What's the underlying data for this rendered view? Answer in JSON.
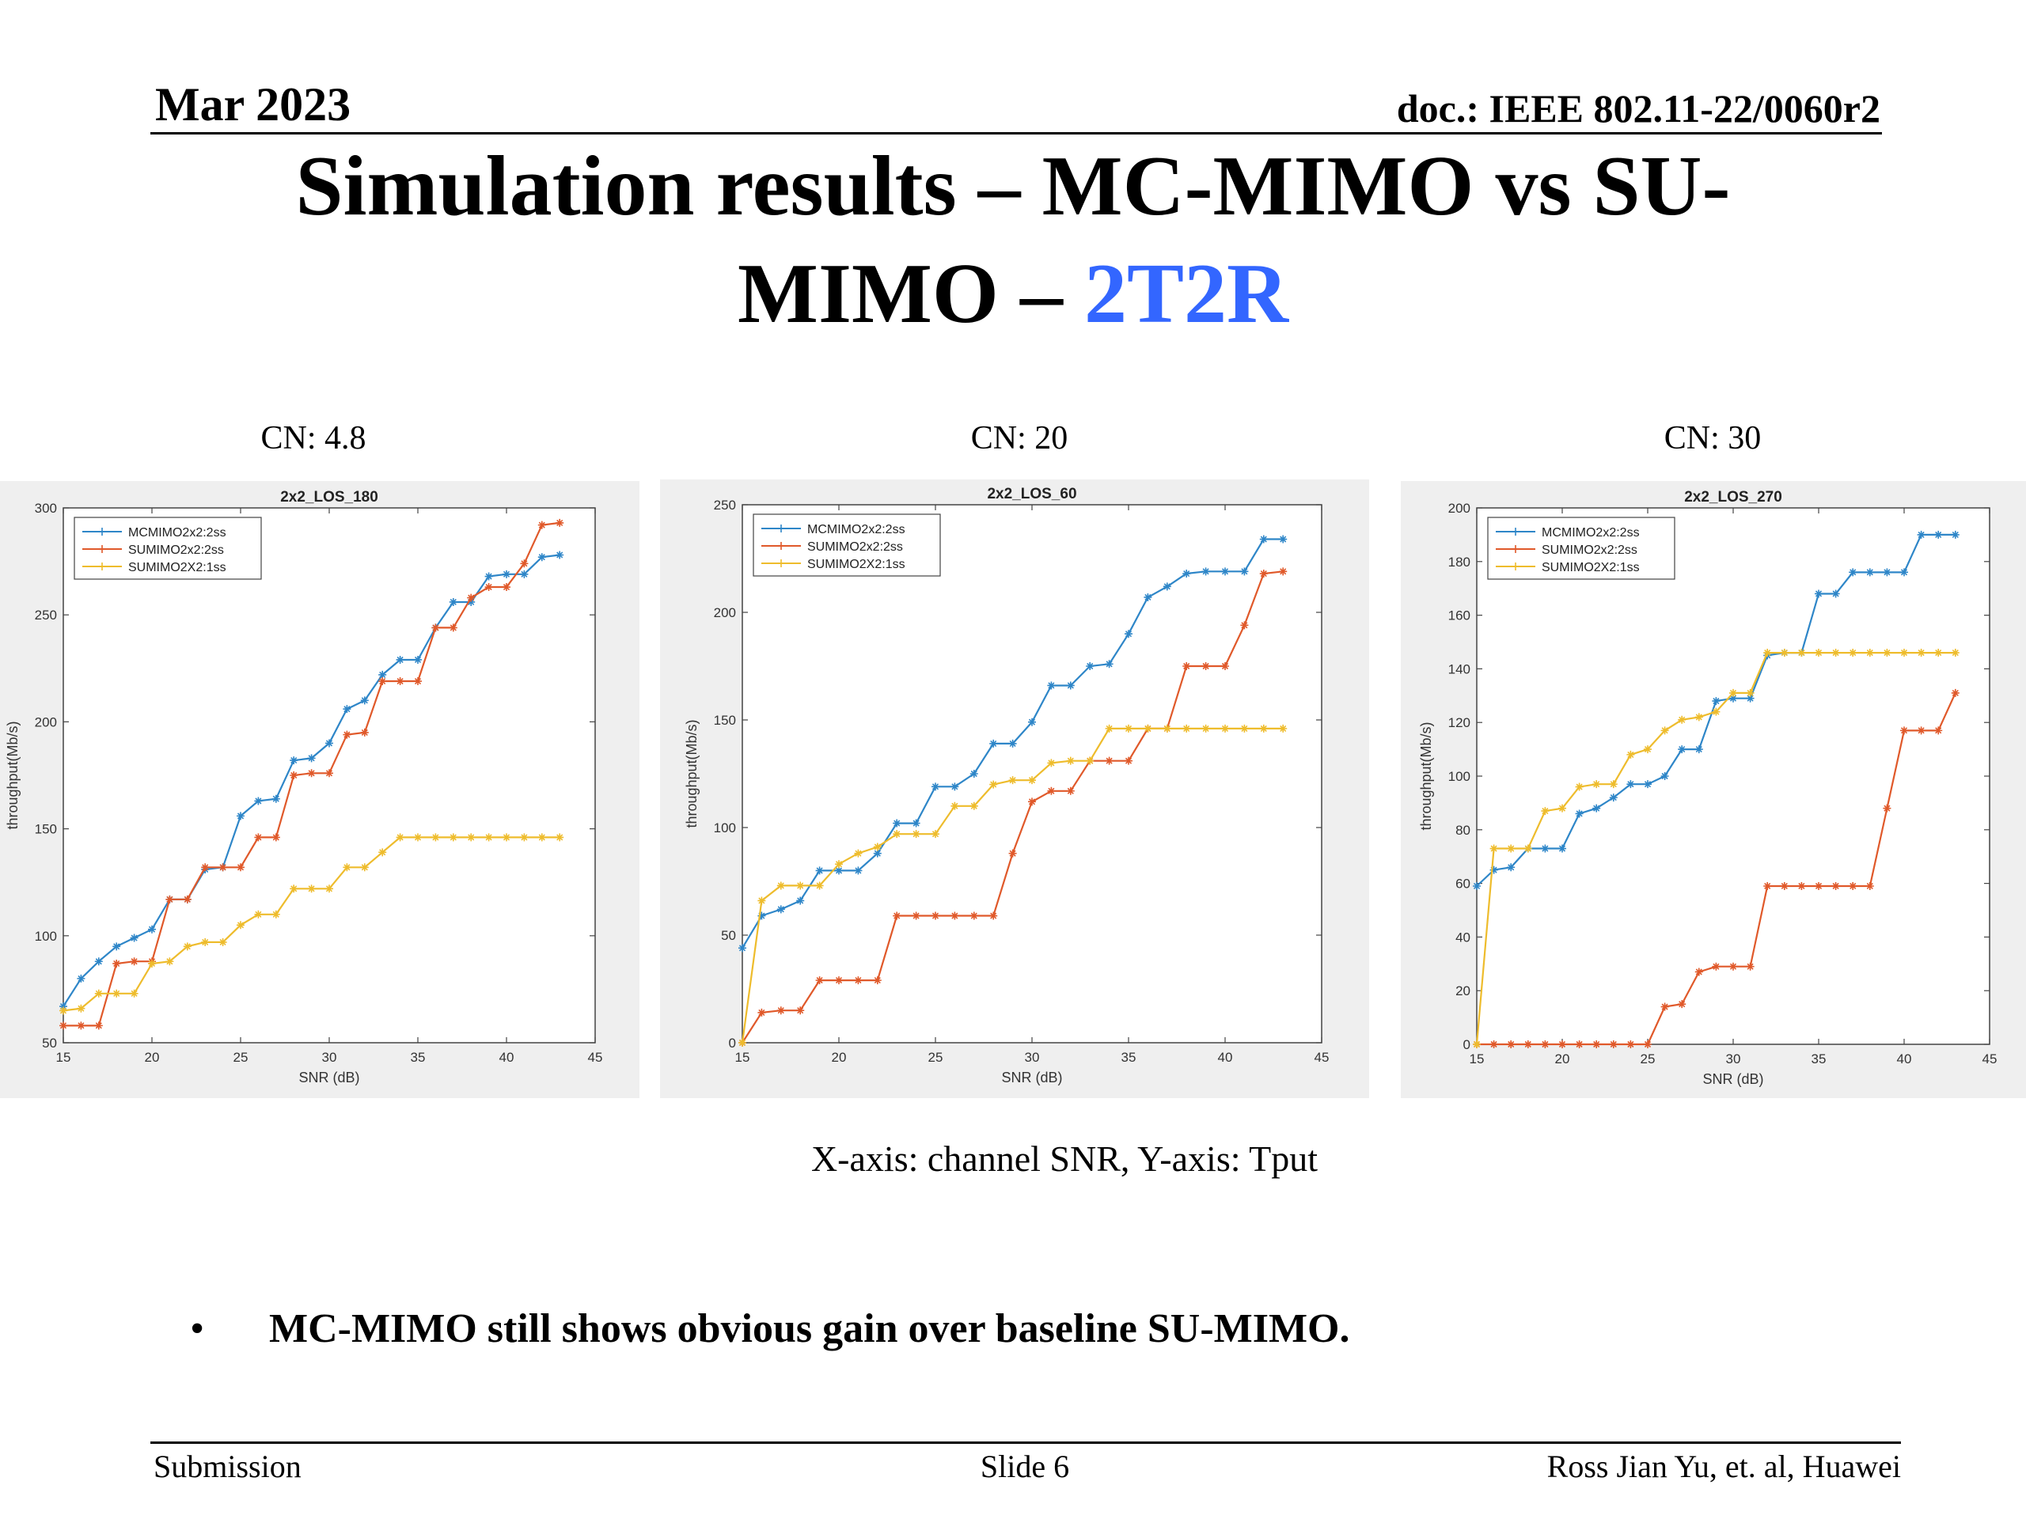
{
  "header": {
    "date": "Mar 2023",
    "doc": "doc.: IEEE 802.11-22/0060r2"
  },
  "title": {
    "line1": "Simulation results – MC-MIMO vs SU-",
    "line2_prefix": "MIMO – ",
    "line2_accent": "2T2R",
    "accent_color": "#3366ff"
  },
  "panels": [
    {
      "label": "CN: 4.8"
    },
    {
      "label": "CN: 20"
    },
    {
      "label": "CN: 30"
    }
  ],
  "axis_caption": "X-axis: channel SNR, Y-axis: Tput",
  "bullet": {
    "marker": "•",
    "text": "MC-MIMO still shows obvious gain over baseline SU-MIMO."
  },
  "footer": {
    "left": "Submission",
    "center": "Slide 6",
    "right": "Ross Jian Yu, et. al, Huawei"
  },
  "series_colors": {
    "MCMIMO2x2:2ss": "#2e86c8",
    "SUMIMO2x2:2ss": "#e0592a",
    "SUMIMO2X2:1ss": "#eebc2c"
  },
  "chart_data": [
    {
      "type": "line",
      "title": "2x2_LOS_180",
      "xlabel": "SNR (dB)",
      "ylabel": "throughput(Mb/s)",
      "xlim": [
        15,
        45
      ],
      "ylim": [
        50,
        300
      ],
      "xticks": [
        15,
        20,
        25,
        30,
        35,
        40,
        45
      ],
      "yticks": [
        50,
        100,
        150,
        200,
        250,
        300
      ],
      "grid": false,
      "legend": "top-left",
      "x": [
        15,
        16,
        17,
        18,
        19,
        20,
        21,
        22,
        23,
        24,
        25,
        26,
        27,
        28,
        29,
        30,
        31,
        32,
        33,
        34,
        35,
        36,
        37,
        38,
        39,
        40,
        41,
        42,
        43
      ],
      "series": [
        {
          "name": "MCMIMO2x2:2ss",
          "values": [
            67,
            80,
            88,
            95,
            99,
            103,
            117,
            117,
            131,
            132,
            156,
            163,
            164,
            182,
            183,
            190,
            206,
            210,
            222,
            229,
            229,
            244,
            256,
            256,
            268,
            269,
            269,
            277,
            278
          ]
        },
        {
          "name": "SUMIMO2x2:2ss",
          "values": [
            58,
            58,
            58,
            87,
            88,
            88,
            117,
            117,
            132,
            132,
            132,
            146,
            146,
            175,
            176,
            176,
            194,
            195,
            219,
            219,
            219,
            244,
            244,
            258,
            263,
            263,
            274,
            292,
            293
          ]
        },
        {
          "name": "SUMIMO2X2:1ss",
          "values": [
            65,
            66,
            73,
            73,
            73,
            87,
            88,
            95,
            97,
            97,
            105,
            110,
            110,
            122,
            122,
            122,
            132,
            132,
            139,
            146,
            146,
            146,
            146,
            146,
            146,
            146,
            146,
            146,
            146
          ]
        }
      ]
    },
    {
      "type": "line",
      "title": "2x2_LOS_60",
      "xlabel": "SNR (dB)",
      "ylabel": "throughput(Mb/s)",
      "xlim": [
        15,
        45
      ],
      "ylim": [
        0,
        250
      ],
      "xticks": [
        15,
        20,
        25,
        30,
        35,
        40,
        45
      ],
      "yticks": [
        0,
        50,
        100,
        150,
        200,
        250
      ],
      "grid": false,
      "legend": "top-left",
      "x": [
        15,
        16,
        17,
        18,
        19,
        20,
        21,
        22,
        23,
        24,
        25,
        26,
        27,
        28,
        29,
        30,
        31,
        32,
        33,
        34,
        35,
        36,
        37,
        38,
        39,
        40,
        41,
        42,
        43
      ],
      "series": [
        {
          "name": "MCMIMO2x2:2ss",
          "values": [
            44,
            59,
            62,
            66,
            80,
            80,
            80,
            88,
            102,
            102,
            119,
            119,
            125,
            139,
            139,
            149,
            166,
            166,
            175,
            176,
            190,
            207,
            212,
            218,
            219,
            219,
            219,
            234,
            234
          ]
        },
        {
          "name": "SUMIMO2x2:2ss",
          "values": [
            0,
            14,
            15,
            15,
            29,
            29,
            29,
            29,
            59,
            59,
            59,
            59,
            59,
            59,
            88,
            112,
            117,
            117,
            131,
            131,
            131,
            146,
            146,
            175,
            175,
            175,
            194,
            218,
            219
          ]
        },
        {
          "name": "SUMIMO2X2:1ss",
          "values": [
            0,
            66,
            73,
            73,
            73,
            83,
            88,
            91,
            97,
            97,
            97,
            110,
            110,
            120,
            122,
            122,
            130,
            131,
            131,
            146,
            146,
            146,
            146,
            146,
            146,
            146,
            146,
            146,
            146
          ]
        }
      ]
    },
    {
      "type": "line",
      "title": "2x2_LOS_270",
      "xlabel": "SNR (dB)",
      "ylabel": "throughput(Mb/s)",
      "xlim": [
        15,
        45
      ],
      "ylim": [
        0,
        200
      ],
      "xticks": [
        15,
        20,
        25,
        30,
        35,
        40,
        45
      ],
      "yticks": [
        0,
        20,
        40,
        60,
        80,
        100,
        120,
        140,
        160,
        180,
        200
      ],
      "grid": false,
      "legend": "top-left",
      "x": [
        15,
        16,
        17,
        18,
        19,
        20,
        21,
        22,
        23,
        24,
        25,
        26,
        27,
        28,
        29,
        30,
        31,
        32,
        33,
        34,
        35,
        36,
        37,
        38,
        39,
        40,
        41,
        42,
        43
      ],
      "series": [
        {
          "name": "MCMIMO2x2:2ss",
          "values": [
            59,
            65,
            66,
            73,
            73,
            73,
            86,
            88,
            92,
            97,
            97,
            100,
            110,
            110,
            128,
            129,
            129,
            145,
            146,
            146,
            168,
            168,
            176,
            176,
            176,
            176,
            190,
            190,
            190
          ]
        },
        {
          "name": "SUMIMO2x2:2ss",
          "values": [
            0,
            0,
            0,
            0,
            0,
            0,
            0,
            0,
            0,
            0,
            0,
            14,
            15,
            27,
            29,
            29,
            29,
            59,
            59,
            59,
            59,
            59,
            59,
            59,
            88,
            117,
            117,
            117,
            131
          ]
        },
        {
          "name": "SUMIMO2X2:1ss",
          "values": [
            0,
            73,
            73,
            73,
            87,
            88,
            96,
            97,
            97,
            108,
            110,
            117,
            121,
            122,
            124,
            131,
            131,
            146,
            146,
            146,
            146,
            146,
            146,
            146,
            146,
            146,
            146,
            146,
            146
          ]
        }
      ]
    }
  ]
}
